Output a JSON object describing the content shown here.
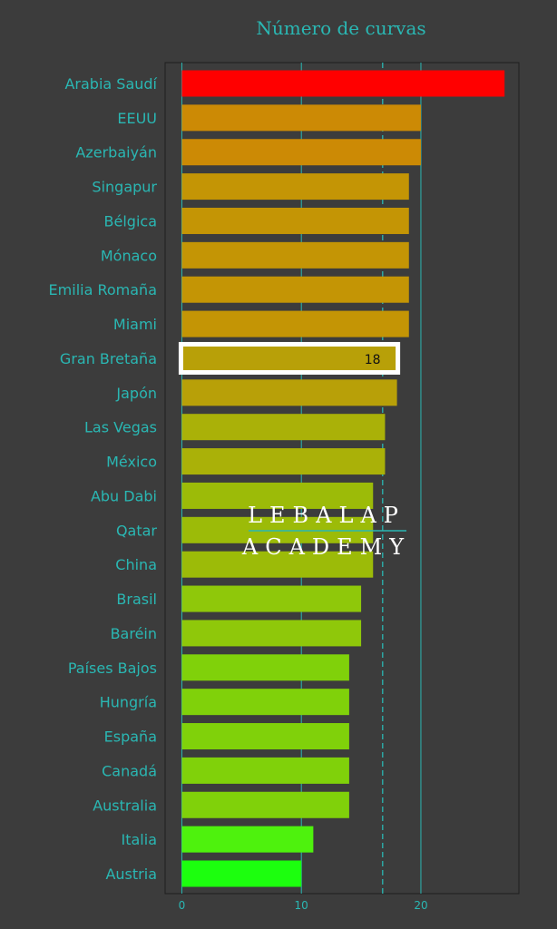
{
  "colors": {
    "background": "#3c3c3c",
    "accent": "#2ab7b3",
    "highlight_outline": "#ffffff",
    "watermark": "#ffffff"
  },
  "watermark": {
    "line1": "LEBALAP",
    "line2": "ACADEMY"
  },
  "chart_data": {
    "type": "bar",
    "orientation": "horizontal",
    "title": "Número de curvas",
    "xlabel": "",
    "ylabel": "",
    "xlim": [
      -1.4,
      28.2
    ],
    "xticks": [
      0,
      10,
      20
    ],
    "grid": "vertical lines at 0, 10, 20",
    "reference_line": {
      "value": 16.8,
      "style": "dashed"
    },
    "categories": [
      "Arabia Saudí",
      "EEUU",
      "Azerbaiyán",
      "Singapur",
      "Bélgica",
      "Mónaco",
      "Emilia Romaña",
      "Miami",
      "Gran Bretaña",
      "Japón",
      "Las Vegas",
      "México",
      "Abu Dabi",
      "Qatar",
      "China",
      "Brasil",
      "Baréin",
      "Países Bajos",
      "Hungría",
      "España",
      "Canadá",
      "Australia",
      "Italia",
      "Austria"
    ],
    "values": [
      27,
      20,
      20,
      19,
      19,
      19,
      19,
      19,
      18,
      18,
      17,
      17,
      16,
      16,
      16,
      15,
      15,
      14,
      14,
      14,
      14,
      14,
      11,
      10
    ],
    "bar_colors": [
      "#ff0000",
      "#cc8a05",
      "#cc8a05",
      "#c49505",
      "#c49505",
      "#c49505",
      "#c49505",
      "#c49505",
      "#b8a008",
      "#b8a008",
      "#aab108",
      "#aab108",
      "#9cbb08",
      "#9cbb08",
      "#9cbb08",
      "#8fc80a",
      "#8fc80a",
      "#80d10a",
      "#80d10a",
      "#80d10a",
      "#80d10a",
      "#80d10a",
      "#4ef20d",
      "#1cff0e"
    ],
    "highlight": {
      "category": "Gran Bretaña",
      "label": "18"
    }
  }
}
